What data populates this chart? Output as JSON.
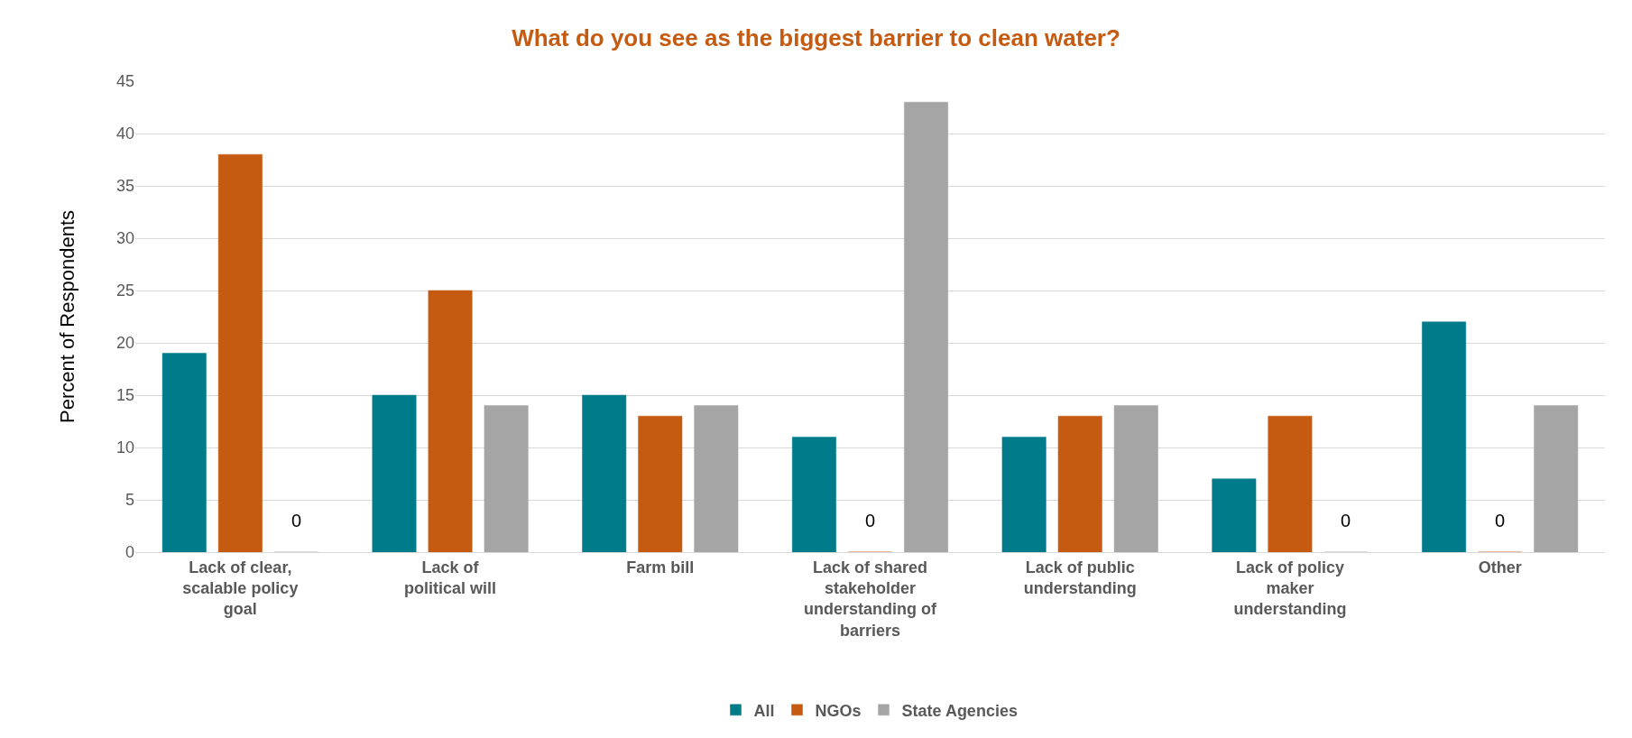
{
  "chart_data": {
    "type": "bar",
    "title": "What do you see as the biggest barrier to clean water?",
    "ylabel": "Percent of Respondents",
    "categories": [
      "Lack of clear, scalable policy goal",
      "Lack of political will",
      "Farm bill",
      "Lack of shared stakeholder understanding of barriers",
      "Lack of public understanding",
      "Lack of policy maker understanding",
      "Other"
    ],
    "series": [
      {
        "name": "All",
        "color": "#007b8a",
        "values": [
          19,
          15,
          15,
          11,
          11,
          7,
          22
        ]
      },
      {
        "name": "NGOs",
        "color": "#c55a11",
        "values": [
          38,
          25,
          13,
          0,
          13,
          13,
          0
        ],
        "value_labels": [
          null,
          null,
          null,
          "0",
          null,
          null,
          "0"
        ]
      },
      {
        "name": "State Agencies",
        "color": "#a5a5a5",
        "values": [
          0,
          14,
          14,
          43,
          14,
          0,
          14
        ],
        "value_labels": [
          "0",
          null,
          null,
          null,
          null,
          "0",
          null
        ]
      }
    ],
    "ylim": [
      0,
      45
    ],
    "yticks": [
      0,
      5,
      10,
      15,
      20,
      25,
      30,
      35,
      40,
      45
    ],
    "grid": "y",
    "legend": "bottom"
  }
}
